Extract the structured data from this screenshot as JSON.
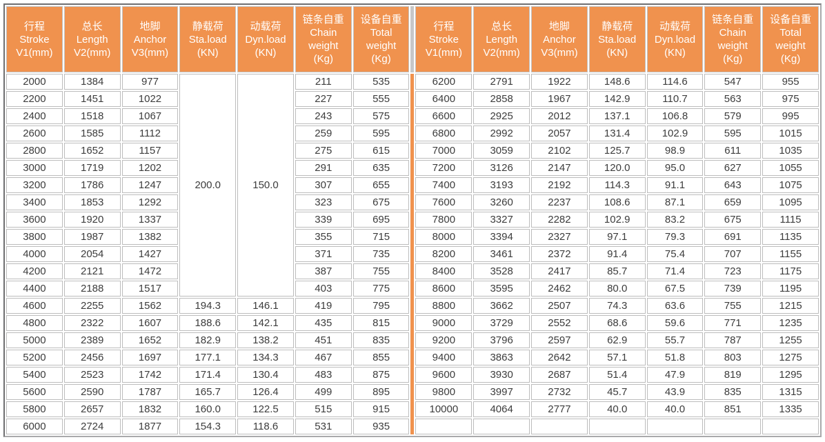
{
  "colors": {
    "header_bg": "#F0924E",
    "header_text": "#FFFFFF",
    "divider": "#F0924E",
    "cell_border": "#BCBCBC",
    "cell_text": "#3C3C3C"
  },
  "table": {
    "columns": [
      {
        "id": "stroke",
        "lines": [
          "行程",
          "Stroke",
          "V1(mm)"
        ]
      },
      {
        "id": "length",
        "lines": [
          "总长",
          "Length",
          "V2(mm)"
        ]
      },
      {
        "id": "anchor",
        "lines": [
          "地脚",
          "Anchor",
          "V3(mm)"
        ]
      },
      {
        "id": "sta-load",
        "lines": [
          "静载荷",
          "Sta.load",
          "(KN)"
        ]
      },
      {
        "id": "dyn-load",
        "lines": [
          "动载荷",
          "Dyn.load",
          "(KN)"
        ]
      },
      {
        "id": "chain-weight",
        "lines": [
          "链条自重",
          "Chain",
          "weight",
          "(Kg)"
        ]
      },
      {
        "id": "total-weight",
        "lines": [
          "设备自重",
          "Total",
          "weight",
          "(Kg)"
        ]
      }
    ],
    "left_half": {
      "merged": {
        "sta_load": "200.0",
        "dyn_load": "150.0",
        "row_span": 13
      },
      "rows": [
        [
          "2000",
          "1384",
          "977",
          null,
          null,
          "211",
          "535"
        ],
        [
          "2200",
          "1451",
          "1022",
          null,
          null,
          "227",
          "555"
        ],
        [
          "2400",
          "1518",
          "1067",
          null,
          null,
          "243",
          "575"
        ],
        [
          "2600",
          "1585",
          "1112",
          null,
          null,
          "259",
          "595"
        ],
        [
          "2800",
          "1652",
          "1157",
          null,
          null,
          "275",
          "615"
        ],
        [
          "3000",
          "1719",
          "1202",
          null,
          null,
          "291",
          "635"
        ],
        [
          "3200",
          "1786",
          "1247",
          null,
          null,
          "307",
          "655"
        ],
        [
          "3400",
          "1853",
          "1292",
          null,
          null,
          "323",
          "675"
        ],
        [
          "3600",
          "1920",
          "1337",
          null,
          null,
          "339",
          "695"
        ],
        [
          "3800",
          "1987",
          "1382",
          null,
          null,
          "355",
          "715"
        ],
        [
          "4000",
          "2054",
          "1427",
          null,
          null,
          "371",
          "735"
        ],
        [
          "4200",
          "2121",
          "1472",
          null,
          null,
          "387",
          "755"
        ],
        [
          "4400",
          "2188",
          "1517",
          null,
          null,
          "403",
          "775"
        ],
        [
          "4600",
          "2255",
          "1562",
          "194.3",
          "146.1",
          "419",
          "795"
        ],
        [
          "4800",
          "2322",
          "1607",
          "188.6",
          "142.1",
          "435",
          "815"
        ],
        [
          "5000",
          "2389",
          "1652",
          "182.9",
          "138.2",
          "451",
          "835"
        ],
        [
          "5200",
          "2456",
          "1697",
          "177.1",
          "134.3",
          "467",
          "855"
        ],
        [
          "5400",
          "2523",
          "1742",
          "171.4",
          "130.4",
          "483",
          "875"
        ],
        [
          "5600",
          "2590",
          "1787",
          "165.7",
          "126.4",
          "499",
          "895"
        ],
        [
          "5800",
          "2657",
          "1832",
          "160.0",
          "122.5",
          "515",
          "915"
        ],
        [
          "6000",
          "2724",
          "1877",
          "154.3",
          "118.6",
          "531",
          "935"
        ]
      ]
    },
    "right_half": {
      "rows": [
        [
          "6200",
          "2791",
          "1922",
          "148.6",
          "114.6",
          "547",
          "955"
        ],
        [
          "6400",
          "2858",
          "1967",
          "142.9",
          "110.7",
          "563",
          "975"
        ],
        [
          "6600",
          "2925",
          "2012",
          "137.1",
          "106.8",
          "579",
          "995"
        ],
        [
          "6800",
          "2992",
          "2057",
          "131.4",
          "102.9",
          "595",
          "1015"
        ],
        [
          "7000",
          "3059",
          "2102",
          "125.7",
          "98.9",
          "611",
          "1035"
        ],
        [
          "7200",
          "3126",
          "2147",
          "120.0",
          "95.0",
          "627",
          "1055"
        ],
        [
          "7400",
          "3193",
          "2192",
          "114.3",
          "91.1",
          "643",
          "1075"
        ],
        [
          "7600",
          "3260",
          "2237",
          "108.6",
          "87.1",
          "659",
          "1095"
        ],
        [
          "7800",
          "3327",
          "2282",
          "102.9",
          "83.2",
          "675",
          "1115"
        ],
        [
          "8000",
          "3394",
          "2327",
          "97.1",
          "79.3",
          "691",
          "1135"
        ],
        [
          "8200",
          "3461",
          "2372",
          "91.4",
          "75.4",
          "707",
          "1155"
        ],
        [
          "8400",
          "3528",
          "2417",
          "85.7",
          "71.4",
          "723",
          "1175"
        ],
        [
          "8600",
          "3595",
          "2462",
          "80.0",
          "67.5",
          "739",
          "1195"
        ],
        [
          "8800",
          "3662",
          "2507",
          "74.3",
          "63.6",
          "755",
          "1215"
        ],
        [
          "9000",
          "3729",
          "2552",
          "68.6",
          "59.6",
          "771",
          "1235"
        ],
        [
          "9200",
          "3796",
          "2597",
          "62.9",
          "55.7",
          "787",
          "1255"
        ],
        [
          "9400",
          "3863",
          "2642",
          "57.1",
          "51.8",
          "803",
          "1275"
        ],
        [
          "9600",
          "3930",
          "2687",
          "51.4",
          "47.9",
          "819",
          "1295"
        ],
        [
          "9800",
          "3997",
          "2732",
          "45.7",
          "43.9",
          "835",
          "1315"
        ],
        [
          "10000",
          "4064",
          "2777",
          "40.0",
          "40.0",
          "851",
          "1335"
        ],
        [
          "",
          "",
          "",
          "",
          "",
          "",
          ""
        ]
      ]
    }
  }
}
